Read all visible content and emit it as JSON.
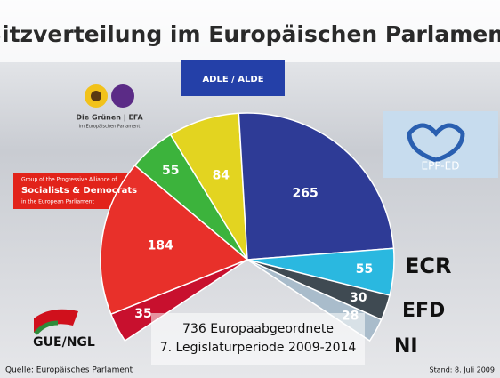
{
  "chart_data": {
    "type": "pie",
    "title": "Sitzverteilung im Europäischen Parlament",
    "categories": [
      "GUE/NGL",
      "Socialists & Democrats",
      "Die Grünen | EFA",
      "ADLE / ALDE",
      "EPP-ED",
      "ECR",
      "EFD",
      "NI"
    ],
    "values": [
      35,
      184,
      55,
      84,
      265,
      55,
      30,
      28
    ],
    "colors": [
      "#c8102e",
      "#e8302a",
      "#3cb33c",
      "#e3d420",
      "#2e3b96",
      "#2ab8e0",
      "#3f4a52",
      "#a9bccb"
    ],
    "logo_texts": {
      "socialists_top": "Group of the Progressive Alliance of",
      "socialists_bottom": "in the European Parliament",
      "greens_bottom": "im Europäischen Parlament"
    },
    "center_text": [
      "736 Europaabgeordnete",
      "7. Legislaturperiode 2009-2014"
    ],
    "source": "Quelle: Europäisches Parlament",
    "date_note": "Stand: 8. Juli 2009"
  }
}
